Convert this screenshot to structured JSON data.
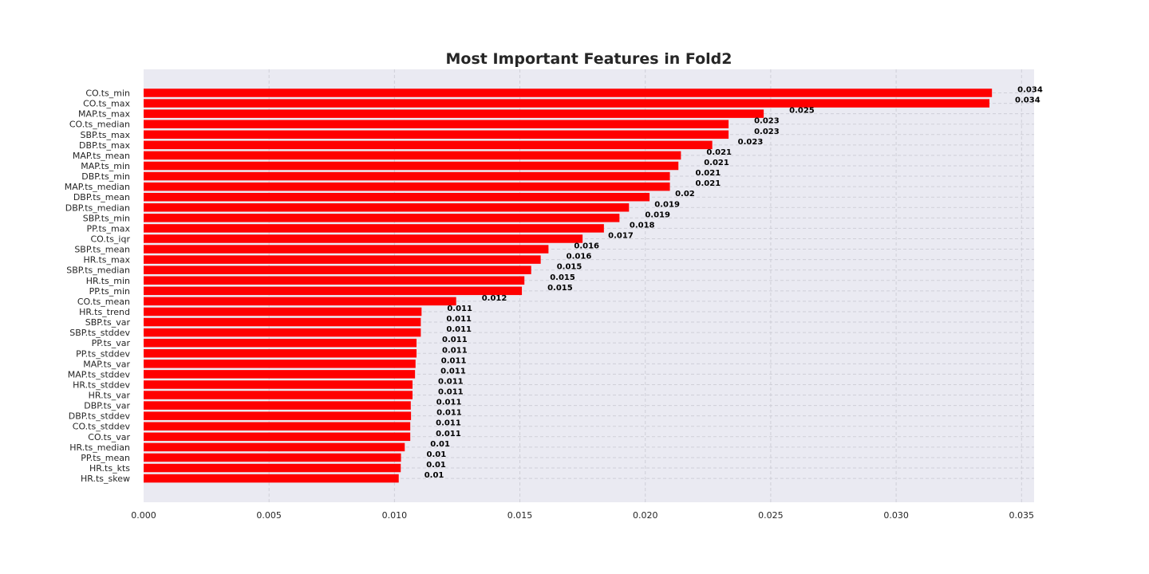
{
  "chart_data": {
    "type": "bar",
    "orientation": "horizontal",
    "title": "Most Important Features in Fold2",
    "xlabel": "",
    "ylabel": "",
    "xlim": [
      0,
      0.0355
    ],
    "xticks": [
      "0.000",
      "0.005",
      "0.010",
      "0.015",
      "0.020",
      "0.025",
      "0.030",
      "0.035"
    ],
    "xtick_values": [
      0,
      0.005,
      0.01,
      0.015,
      0.02,
      0.025,
      0.03,
      0.035
    ],
    "grid": true,
    "bar_color": "#ff0000",
    "background_color": "#eaeaf2",
    "categories": [
      "CO.ts_min",
      "CO.ts_max",
      "MAP.ts_max",
      "CO.ts_median",
      "SBP.ts_max",
      "DBP.ts_max",
      "MAP.ts_mean",
      "MAP.ts_min",
      "DBP.ts_min",
      "MAP.ts_median",
      "DBP.ts_mean",
      "DBP.ts_median",
      "SBP.ts_min",
      "PP.ts_max",
      "CO.ts_iqr",
      "SBP.ts_mean",
      "HR.ts_max",
      "SBP.ts_median",
      "HR.ts_min",
      "PP.ts_min",
      "CO.ts_mean",
      "HR.ts_trend",
      "SBP.ts_var",
      "SBP.ts_stddev",
      "PP.ts_var",
      "PP.ts_stddev",
      "MAP.ts_var",
      "MAP.ts_stddev",
      "HR.ts_stddev",
      "HR.ts_var",
      "DBP.ts_var",
      "DBP.ts_stddev",
      "CO.ts_stddev",
      "CO.ts_var",
      "HR.ts_median",
      "PP.ts_mean",
      "HR.ts_kts",
      "HR.ts_skew"
    ],
    "values": [
      0.03382,
      0.03372,
      0.02472,
      0.02332,
      0.02332,
      0.02267,
      0.02142,
      0.02132,
      0.02098,
      0.02098,
      0.02017,
      0.01935,
      0.01897,
      0.01835,
      0.0175,
      0.01614,
      0.01583,
      0.01545,
      0.01518,
      0.01508,
      0.01246,
      0.01108,
      0.01105,
      0.01105,
      0.01088,
      0.01088,
      0.01084,
      0.01082,
      0.01072,
      0.01072,
      0.01065,
      0.01066,
      0.01063,
      0.01063,
      0.01041,
      0.01026,
      0.01025,
      0.01017
    ],
    "labels": [
      "0.034",
      "0.034",
      "0.025",
      "0.023",
      "0.023",
      "0.023",
      "0.021",
      "0.021",
      "0.021",
      "0.021",
      "0.02",
      "0.019",
      "0.019",
      "0.018",
      "0.017",
      "0.016",
      "0.016",
      "0.015",
      "0.015",
      "0.015",
      "0.012",
      "0.011",
      "0.011",
      "0.011",
      "0.011",
      "0.011",
      "0.011",
      "0.011",
      "0.011",
      "0.011",
      "0.011",
      "0.011",
      "0.011",
      "0.011",
      "0.01",
      "0.01",
      "0.01",
      "0.01"
    ]
  }
}
